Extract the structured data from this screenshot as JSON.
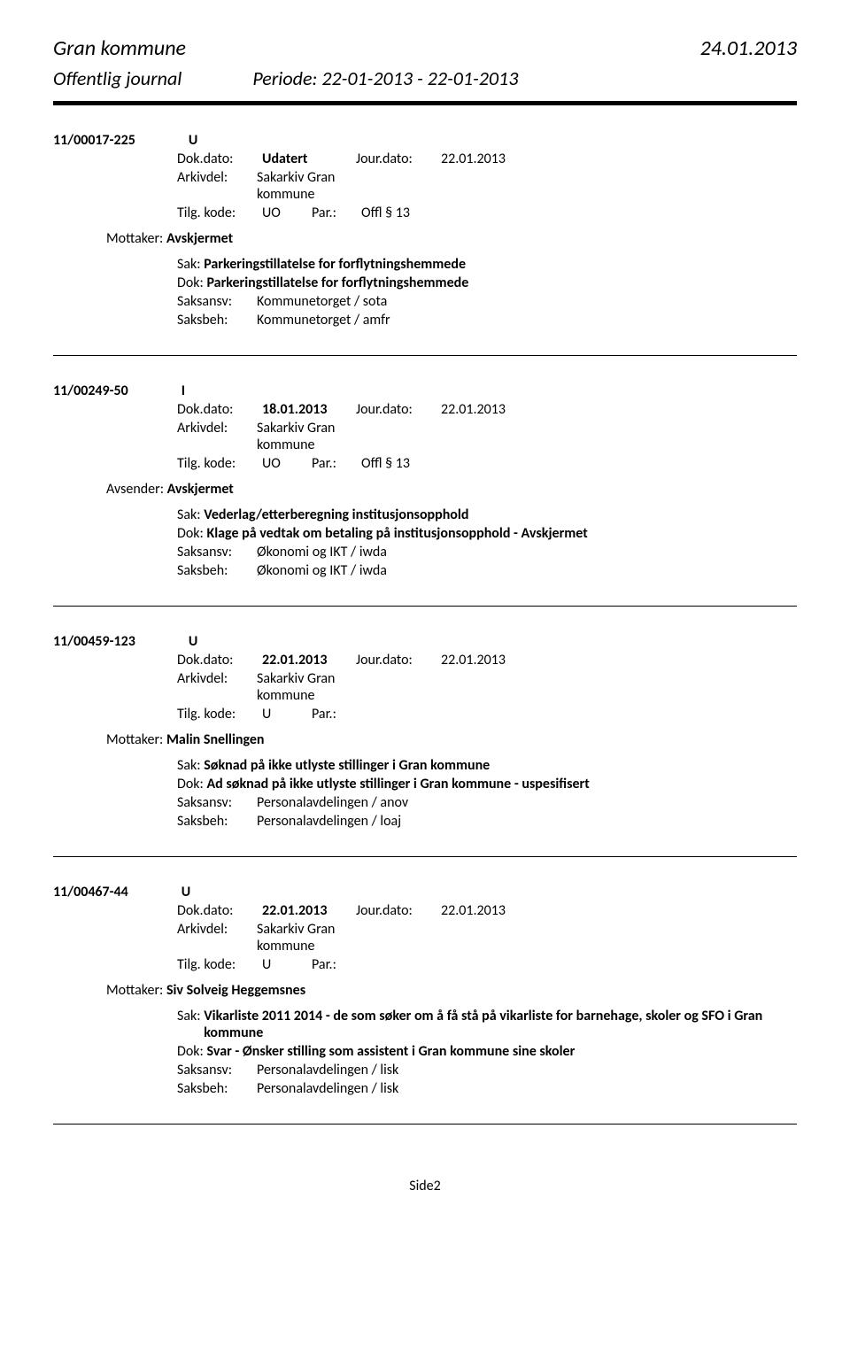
{
  "header": {
    "title": "Gran kommune",
    "date": "24.01.2013",
    "subtitle": "Offentlig journal",
    "period": "Periode: 22-01-2013 - 22-01-2013"
  },
  "entries": [
    {
      "id": "11/00017-225",
      "type": "U",
      "dokdato_label": "Dok.dato:",
      "dokdato": "Udatert",
      "jourdato_label": "Jour.dato:",
      "jourdato": "22.01.2013",
      "arkivdel_label": "Arkivdel:",
      "arkivdel": "Sakarkiv Gran kommune",
      "tilg_label": "Tilg. kode:",
      "tilg_kode": "UO",
      "par_label": "Par.:",
      "par": "Offl § 13",
      "party_label": "Mottaker:",
      "party": "Avskjermet",
      "sak_label": "Sak:",
      "sak": "Parkeringstillatelse for forflytningshemmede",
      "dok_label": "Dok:",
      "dok": "Parkeringstillatelse for forflytningshemmede",
      "saksansv_label": "Saksansv:",
      "saksansv": "Kommunetorget / sota",
      "saksbeh_label": "Saksbeh:",
      "saksbeh": "Kommunetorget / amfr"
    },
    {
      "id": "11/00249-50",
      "type": "I",
      "dokdato_label": "Dok.dato:",
      "dokdato": "18.01.2013",
      "jourdato_label": "Jour.dato:",
      "jourdato": "22.01.2013",
      "arkivdel_label": "Arkivdel:",
      "arkivdel": "Sakarkiv Gran kommune",
      "tilg_label": "Tilg. kode:",
      "tilg_kode": "UO",
      "par_label": "Par.:",
      "par": "Offl § 13",
      "party_label": "Avsender:",
      "party": "Avskjermet",
      "sak_label": "Sak:",
      "sak": "Vederlag/etterberegning institusjonsopphold",
      "dok_label": "Dok:",
      "dok": "Klage på vedtak om betaling på institusjonsopphold      - Avskjermet",
      "saksansv_label": "Saksansv:",
      "saksansv": "Økonomi og IKT / iwda",
      "saksbeh_label": "Saksbeh:",
      "saksbeh": "Økonomi og IKT / iwda"
    },
    {
      "id": "11/00459-123",
      "type": "U",
      "dokdato_label": "Dok.dato:",
      "dokdato": "22.01.2013",
      "jourdato_label": "Jour.dato:",
      "jourdato": "22.01.2013",
      "arkivdel_label": "Arkivdel:",
      "arkivdel": "Sakarkiv Gran kommune",
      "tilg_label": "Tilg. kode:",
      "tilg_kode": "U",
      "par_label": "Par.:",
      "par": "",
      "party_label": "Mottaker:",
      "party": "Malin Snellingen",
      "sak_label": "Sak:",
      "sak": "Søknad på ikke utlyste stillinger i Gran kommune",
      "dok_label": "Dok:",
      "dok": "Ad søknad på ikke utlyste stillinger i Gran kommune - uspesifisert",
      "saksansv_label": "Saksansv:",
      "saksansv": "Personalavdelingen / anov",
      "saksbeh_label": "Saksbeh:",
      "saksbeh": "Personalavdelingen / loaj"
    },
    {
      "id": "11/00467-44",
      "type": "U",
      "dokdato_label": "Dok.dato:",
      "dokdato": "22.01.2013",
      "jourdato_label": "Jour.dato:",
      "jourdato": "22.01.2013",
      "arkivdel_label": "Arkivdel:",
      "arkivdel": "Sakarkiv Gran kommune",
      "tilg_label": "Tilg. kode:",
      "tilg_kode": "U",
      "par_label": "Par.:",
      "par": "",
      "party_label": "Mottaker:",
      "party": "Siv Solveig Heggemsnes",
      "sak_label": "Sak:",
      "sak": "Vikarliste 2011 2014 - de som søker om å få stå på vikarliste for barnehage, skoler og SFO i Gran kommune",
      "dok_label": "Dok:",
      "dok": "Svar - Ønsker stilling som assistent i Gran kommune sine skoler",
      "saksansv_label": "Saksansv:",
      "saksansv": "Personalavdelingen / lisk",
      "saksbeh_label": "Saksbeh:",
      "saksbeh": "Personalavdelingen / lisk"
    }
  ],
  "footer": {
    "page": "Side2"
  }
}
